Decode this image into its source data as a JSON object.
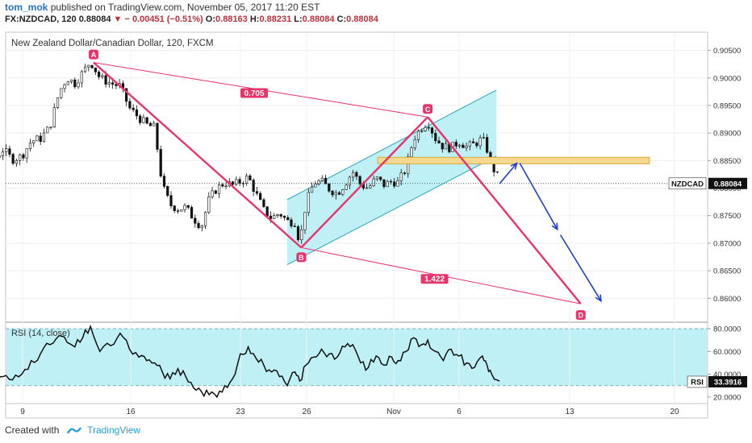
{
  "header": {
    "user": "tom_mok",
    "published": "published on TradingView.com, November 05, 2017 11:20 EST",
    "symbol": "FX:NZDCAD, 120",
    "last": "0.88084",
    "change": "− 0.00451 (−0.51%)",
    "open_label": "O:",
    "open": "0.88163",
    "high_label": "H:",
    "high": "0.88231",
    "low_label": "L:",
    "low": "0.88084",
    "close_label": "C:",
    "close": "0.88084"
  },
  "footer": {
    "created": "Created with",
    "brand": "TradingView"
  },
  "colors": {
    "pattern": "#e8336b",
    "channel_fill": "#bff0f6",
    "channel_line": "#2aa6b8",
    "zone": "#f5d990",
    "arrow": "#1f3fd1",
    "rsi_band": "#bff0f6",
    "candle": "#111111"
  },
  "chart_data": [
    {
      "type": "candlestick",
      "title": "New Zealand Dollar/Canadian Dollar, 120, FXCM",
      "x_ticks": [
        "9",
        "16",
        "23",
        "26",
        "Nov",
        "6",
        "13",
        "20"
      ],
      "y_ticks": [
        "0.90500",
        "0.90000",
        "0.89500",
        "0.89000",
        "0.88500",
        "0.88000",
        "0.87500",
        "0.87000",
        "0.86500",
        "0.86000"
      ],
      "ylim": [
        0.8558,
        0.9083
      ],
      "last_price_label": "NZDCAD",
      "last_price": "0.88084",
      "close_path": [
        [
          -6.5,
          0.8935
        ],
        [
          -5.8,
          0.8908
        ],
        [
          -5.2,
          0.887
        ],
        [
          -4.6,
          0.8882
        ],
        [
          -4.0,
          0.8866
        ],
        [
          -3.5,
          0.8881
        ],
        [
          -2.9,
          0.886
        ],
        [
          -2.3,
          0.8876
        ],
        [
          -1.8,
          0.8852
        ],
        [
          -1.2,
          0.887
        ],
        [
          -0.6,
          0.8852
        ],
        [
          0.0,
          0.8858
        ],
        [
          0.6,
          0.8885
        ],
        [
          1.2,
          0.889
        ],
        [
          1.8,
          0.8911
        ],
        [
          2.4,
          0.8975
        ],
        [
          2.9,
          0.9
        ],
        [
          3.4,
          0.899
        ],
        [
          3.9,
          0.901
        ],
        [
          4.4,
          0.903
        ],
        [
          5.0,
          0.9
        ],
        [
          5.7,
          0.899
        ],
        [
          6.3,
          0.8985
        ],
        [
          6.9,
          0.8945
        ],
        [
          7.5,
          0.8928
        ],
        [
          8.0,
          0.8915
        ],
        [
          8.5,
          0.891
        ],
        [
          9.0,
          0.8805
        ],
        [
          9.5,
          0.877
        ],
        [
          10.0,
          0.8762
        ],
        [
          10.5,
          0.8765
        ],
        [
          11.0,
          0.8745
        ],
        [
          11.5,
          0.873
        ],
        [
          12.0,
          0.878
        ],
        [
          12.5,
          0.88
        ],
        [
          13.0,
          0.881
        ],
        [
          13.5,
          0.8805
        ],
        [
          14.0,
          0.8812
        ],
        [
          14.5,
          0.882
        ],
        [
          15.0,
          0.879
        ],
        [
          15.5,
          0.876
        ],
        [
          16.0,
          0.8745
        ],
        [
          16.5,
          0.8755
        ],
        [
          17.0,
          0.874
        ],
        [
          17.5,
          0.8738
        ],
        [
          17.8,
          0.87
        ],
        [
          18.2,
          0.8772
        ],
        [
          18.7,
          0.881
        ],
        [
          19.2,
          0.8812
        ],
        [
          19.7,
          0.8798
        ],
        [
          20.2,
          0.879
        ],
        [
          20.7,
          0.8808
        ],
        [
          21.2,
          0.883
        ],
        [
          21.7,
          0.8806
        ],
        [
          22.2,
          0.88
        ],
        [
          22.7,
          0.8818
        ],
        [
          23.2,
          0.8806
        ],
        [
          23.7,
          0.8812
        ],
        [
          24.1,
          0.881
        ],
        [
          24.6,
          0.8835
        ],
        [
          25.1,
          0.889
        ],
        [
          25.6,
          0.891
        ],
        [
          26.0,
          0.8921
        ],
        [
          26.5,
          0.889
        ],
        [
          27.0,
          0.8875
        ],
        [
          27.5,
          0.8873
        ],
        [
          28.0,
          0.8885
        ],
        [
          28.5,
          0.8875
        ],
        [
          29.0,
          0.888
        ],
        [
          29.5,
          0.889
        ],
        [
          29.8,
          0.887
        ],
        [
          30.1,
          0.884
        ],
        [
          30.6,
          0.8816
        ]
      ]
    },
    {
      "type": "line",
      "title": "RSI (14, close)",
      "y_ticks": [
        "80.0000",
        "60.0000",
        "40.0000",
        "20.0000"
      ],
      "ylim": [
        15,
        85
      ],
      "band": [
        30,
        80
      ],
      "last_label": "RSI",
      "last_value": "33.3916",
      "points": [
        [
          -6.5,
          48
        ],
        [
          -5.8,
          42
        ],
        [
          -5.2,
          36
        ],
        [
          -4.6,
          42
        ],
        [
          -4.0,
          35
        ],
        [
          -3.5,
          44
        ],
        [
          -2.9,
          36
        ],
        [
          -2.3,
          40
        ],
        [
          -1.8,
          32
        ],
        [
          -1.2,
          38
        ],
        [
          -0.6,
          35
        ],
        [
          0.0,
          40
        ],
        [
          0.6,
          52
        ],
        [
          1.2,
          58
        ],
        [
          1.8,
          66
        ],
        [
          2.4,
          74
        ],
        [
          2.9,
          68
        ],
        [
          3.4,
          64
        ],
        [
          3.9,
          72
        ],
        [
          4.4,
          82
        ],
        [
          5.0,
          60
        ],
        [
          5.7,
          65
        ],
        [
          6.3,
          76
        ],
        [
          6.9,
          62
        ],
        [
          7.5,
          55
        ],
        [
          8.0,
          52
        ],
        [
          8.5,
          50
        ],
        [
          9.0,
          42
        ],
        [
          9.5,
          36
        ],
        [
          10.0,
          45
        ],
        [
          10.5,
          38
        ],
        [
          11.0,
          28
        ],
        [
          11.5,
          25
        ],
        [
          12.0,
          22
        ],
        [
          12.5,
          20
        ],
        [
          13.0,
          30
        ],
        [
          13.5,
          36
        ],
        [
          14.0,
          58
        ],
        [
          14.5,
          64
        ],
        [
          15.0,
          54
        ],
        [
          15.5,
          48
        ],
        [
          16.0,
          42
        ],
        [
          16.5,
          38
        ],
        [
          17.0,
          30
        ],
        [
          17.5,
          42
        ],
        [
          17.8,
          34
        ],
        [
          18.2,
          48
        ],
        [
          18.7,
          55
        ],
        [
          19.2,
          62
        ],
        [
          19.7,
          58
        ],
        [
          20.2,
          55
        ],
        [
          20.7,
          64
        ],
        [
          21.2,
          66
        ],
        [
          21.7,
          50
        ],
        [
          22.2,
          46
        ],
        [
          22.7,
          56
        ],
        [
          23.2,
          48
        ],
        [
          23.7,
          55
        ],
        [
          24.1,
          52
        ],
        [
          24.6,
          60
        ],
        [
          25.1,
          72
        ],
        [
          25.6,
          66
        ],
        [
          26.0,
          70
        ],
        [
          26.5,
          60
        ],
        [
          27.0,
          52
        ],
        [
          27.5,
          62
        ],
        [
          28.0,
          56
        ],
        [
          28.5,
          50
        ],
        [
          29.0,
          46
        ],
        [
          29.5,
          56
        ],
        [
          29.8,
          48
        ],
        [
          30.1,
          40
        ],
        [
          30.6,
          34
        ]
      ]
    }
  ],
  "drawings": {
    "points": {
      "A": {
        "label": "A",
        "x": 4.6,
        "y": 0.9028
      },
      "B": {
        "label": "B",
        "x": 17.9,
        "y": 0.8692
      },
      "C": {
        "label": "C",
        "x": 26.0,
        "y": 0.8929
      },
      "D": {
        "label": "D",
        "x": 35.8,
        "y": 0.859
      }
    },
    "ratios": [
      {
        "label": "0.705",
        "from": "A",
        "to": "C"
      },
      {
        "label": "1.422",
        "from": "B",
        "to": "D"
      }
    ],
    "channel": [
      [
        17.0,
        0.8661
      ],
      [
        30.4,
        0.8858
      ],
      [
        30.4,
        0.8978
      ],
      [
        17.0,
        0.8779
      ]
    ],
    "zone": {
      "x_from": 22.8,
      "x_to": 40.2,
      "y_low": 0.8847,
      "y_high": 0.8853
    },
    "arrows": [
      [
        [
          30.6,
          0.8808
        ],
        [
          31.7,
          0.8845
        ]
      ],
      [
        [
          31.9,
          0.8845
        ],
        [
          34.3,
          0.8725
        ]
      ],
      [
        [
          34.5,
          0.8715
        ],
        [
          37.1,
          0.8595
        ]
      ]
    ]
  }
}
